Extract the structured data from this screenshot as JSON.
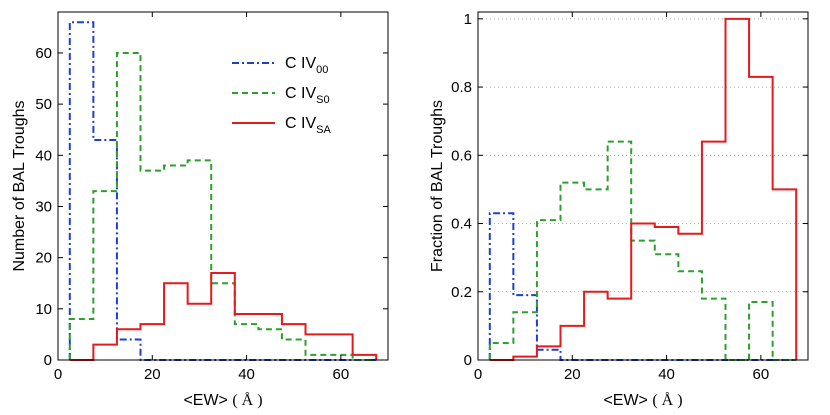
{
  "chart_data": [
    {
      "type": "step",
      "panel": "left",
      "xlabel": "<EW>",
      "xlabel_unit": "( Å )",
      "ylabel": "Number of BAL Troughs",
      "xlim": [
        0,
        70
      ],
      "ylim": [
        0,
        68
      ],
      "xticks": [
        0,
        20,
        40,
        60
      ],
      "yticks": [
        0,
        10,
        20,
        30,
        40,
        50,
        60
      ],
      "grid": false,
      "legend": {
        "placement": "top-right"
      },
      "bin_edges": [
        2.5,
        7.5,
        12.5,
        17.5,
        22.5,
        27.5,
        32.5,
        37.5,
        42.5,
        47.5,
        52.5,
        57.5,
        62.5,
        67.5
      ],
      "series": [
        {
          "name": "C IV",
          "sub": "00",
          "color": "#1f3fd1",
          "dash": "7,3,2,3",
          "values": [
            66,
            43,
            4,
            0,
            0,
            0,
            0,
            0,
            0,
            0,
            0,
            0,
            0
          ]
        },
        {
          "name": "C IV",
          "sub": "S0",
          "color": "#2ca02c",
          "dash": "6,4",
          "values": [
            8,
            33,
            60,
            37,
            38,
            39,
            15,
            7,
            6,
            4,
            1,
            1,
            0
          ]
        },
        {
          "name": "C IV",
          "sub": "SA",
          "color": "#e41a1c",
          "dash": "",
          "values": [
            0,
            3,
            6,
            7,
            15,
            11,
            17,
            9,
            9,
            7,
            5,
            5,
            1
          ]
        }
      ]
    },
    {
      "type": "step",
      "panel": "right",
      "xlabel": "<EW>",
      "xlabel_unit": "( Å )",
      "ylabel": "Fraction of BAL Troughs",
      "xlim": [
        0,
        70
      ],
      "ylim": [
        0,
        1.02
      ],
      "xticks": [
        0,
        20,
        40,
        60
      ],
      "yticks": [
        0,
        0.2,
        0.4,
        0.6,
        0.8,
        1
      ],
      "ytick_labels": [
        "0",
        "0.2",
        "0.4",
        "0.6",
        "0.8",
        "1"
      ],
      "grid": true,
      "bin_edges": [
        2.5,
        7.5,
        12.5,
        17.5,
        22.5,
        27.5,
        32.5,
        37.5,
        42.5,
        47.5,
        52.5,
        57.5,
        62.5,
        67.5
      ],
      "series": [
        {
          "name": "C IV",
          "sub": "00",
          "color": "#1f3fd1",
          "dash": "7,3,2,3",
          "values": [
            0.43,
            0.19,
            0.03,
            0,
            0,
            0,
            0,
            0,
            0,
            0,
            0,
            0,
            0
          ]
        },
        {
          "name": "C IV",
          "sub": "S0",
          "color": "#2ca02c",
          "dash": "6,4",
          "values": [
            0.05,
            0.14,
            0.41,
            0.52,
            0.5,
            0.64,
            0.35,
            0.31,
            0.26,
            0.18,
            0,
            0.17,
            0
          ]
        },
        {
          "name": "C IV",
          "sub": "SA",
          "color": "#e41a1c",
          "dash": "",
          "values": [
            0,
            0.01,
            0.04,
            0.1,
            0.2,
            0.18,
            0.4,
            0.39,
            0.37,
            0.64,
            1.0,
            0.83,
            0.5
          ]
        }
      ]
    }
  ]
}
